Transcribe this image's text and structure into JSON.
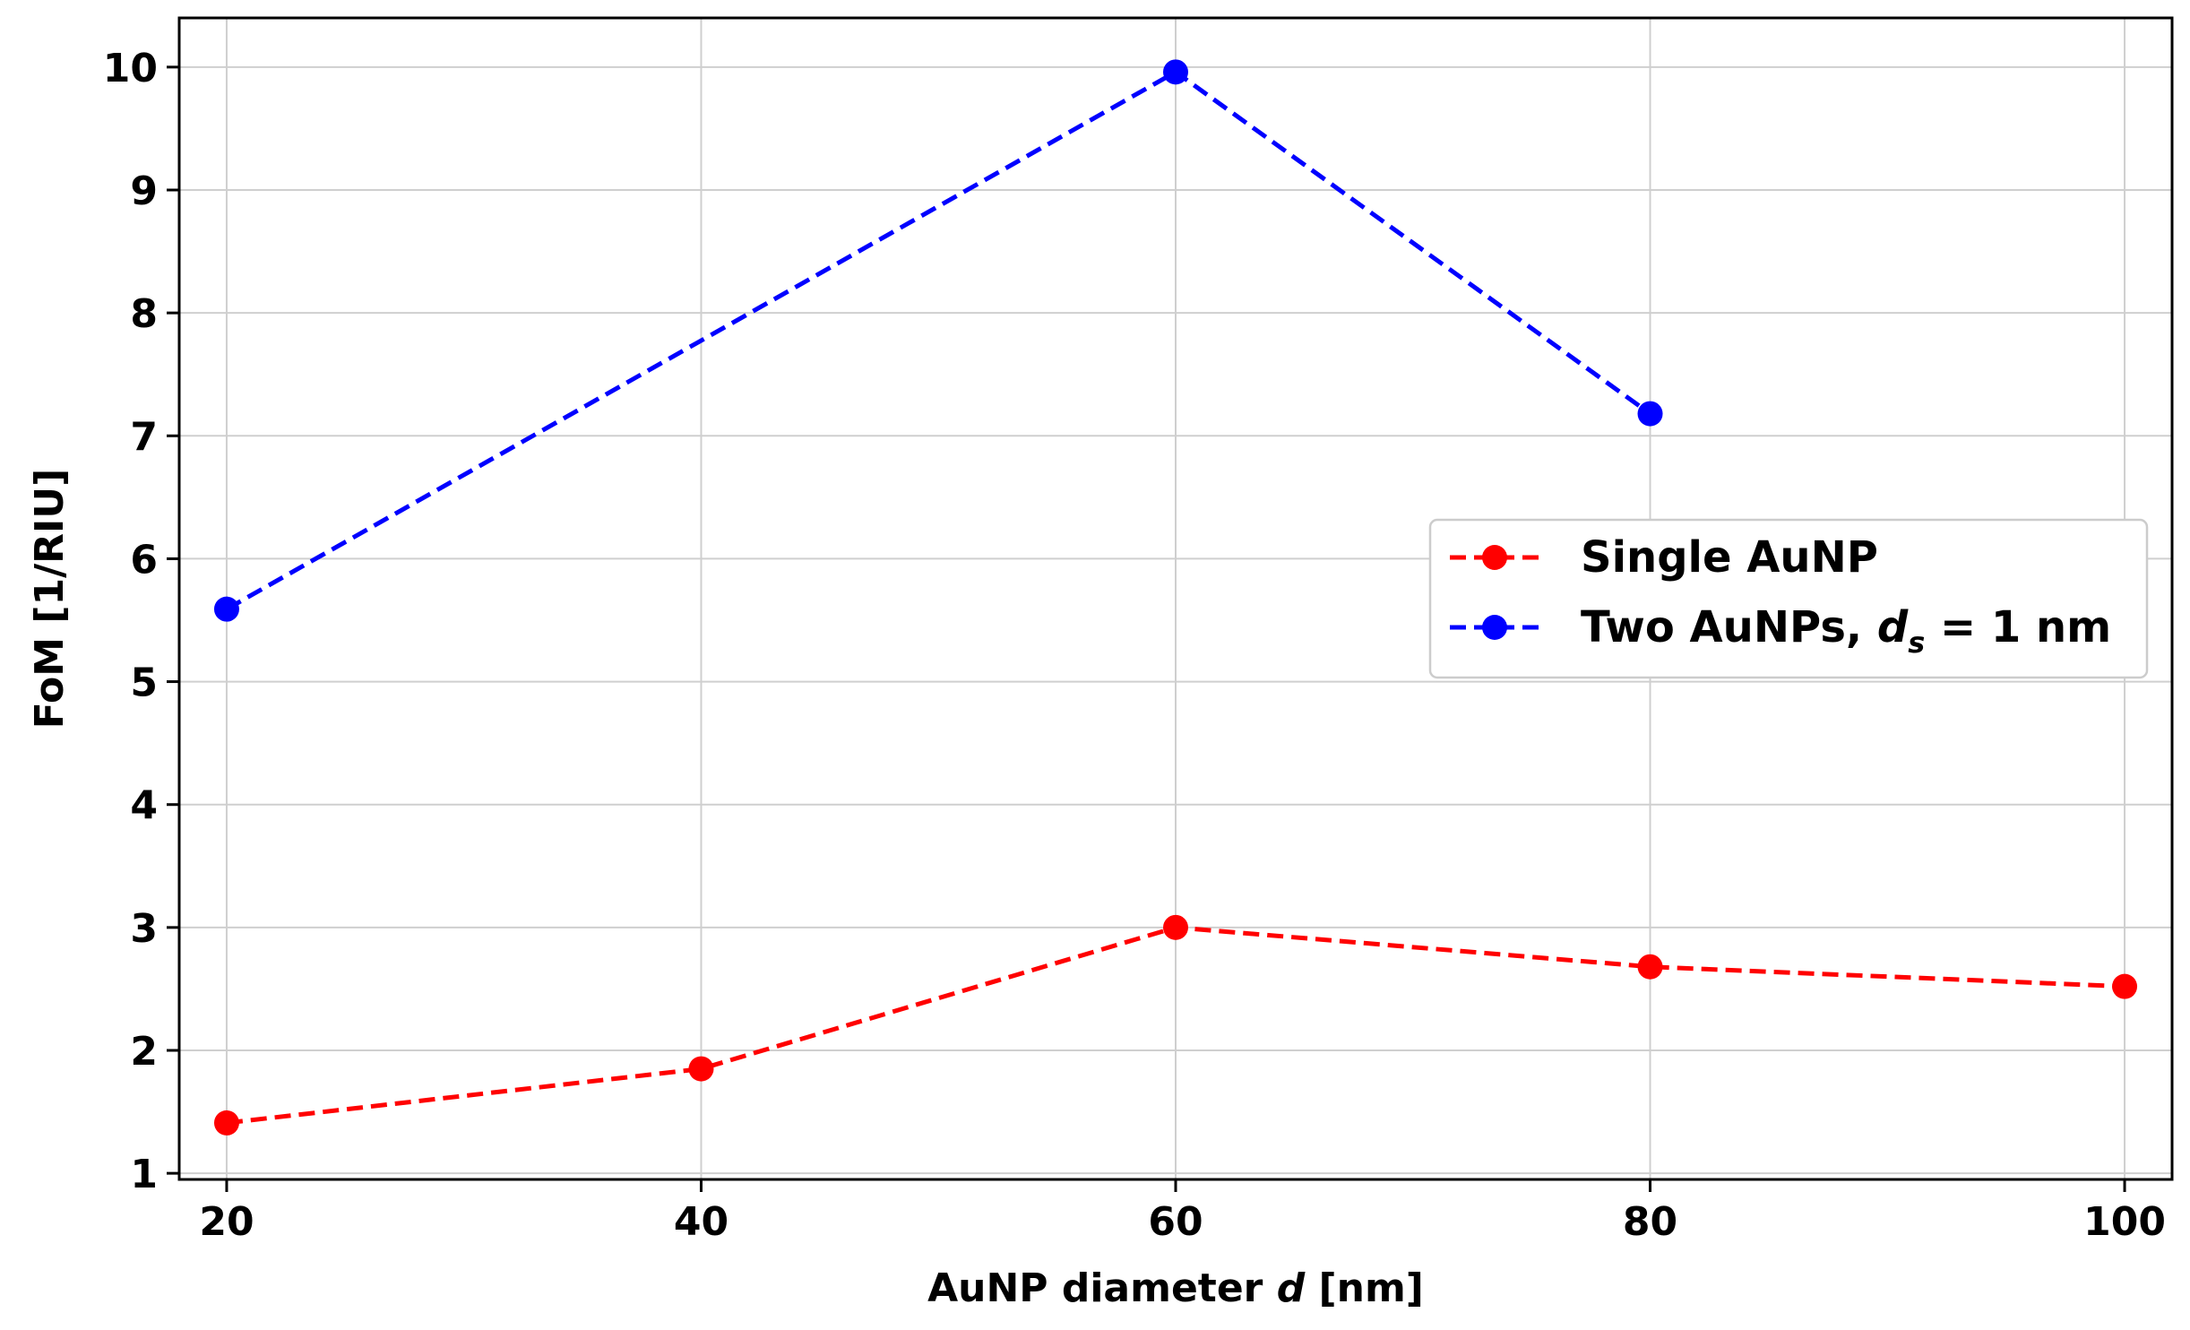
{
  "chart_data": {
    "type": "line",
    "xlabel": "AuNP diameter d [nm]",
    "xlabel_parts": {
      "prefix": "AuNP diameter ",
      "var": "d",
      "suffix": " [nm]"
    },
    "ylabel": "FoM [1/RIU]",
    "xlim": [
      18,
      102
    ],
    "ylim": [
      0.95,
      10.4
    ],
    "xticks": [
      20,
      40,
      60,
      80,
      100
    ],
    "yticks": [
      1,
      2,
      3,
      4,
      5,
      6,
      7,
      8,
      9,
      10
    ],
    "grid": true,
    "legend_position": "center-right",
    "series": [
      {
        "name": "Single AuNP",
        "color": "#ff0000",
        "line_style": "dashed",
        "marker": "circle",
        "x": [
          20,
          40,
          60,
          80,
          100
        ],
        "y": [
          1.41,
          1.85,
          3.0,
          2.68,
          2.52
        ]
      },
      {
        "name": "Two AuNPs, ds = 1 nm",
        "name_parts": {
          "prefix": "Two AuNPs, ",
          "var": "d",
          "sub": "s",
          "suffix": " = 1 nm"
        },
        "color": "#0000ff",
        "line_style": "dashed",
        "marker": "circle",
        "x": [
          20,
          60,
          80
        ],
        "y": [
          5.59,
          9.96,
          7.18
        ]
      }
    ]
  }
}
